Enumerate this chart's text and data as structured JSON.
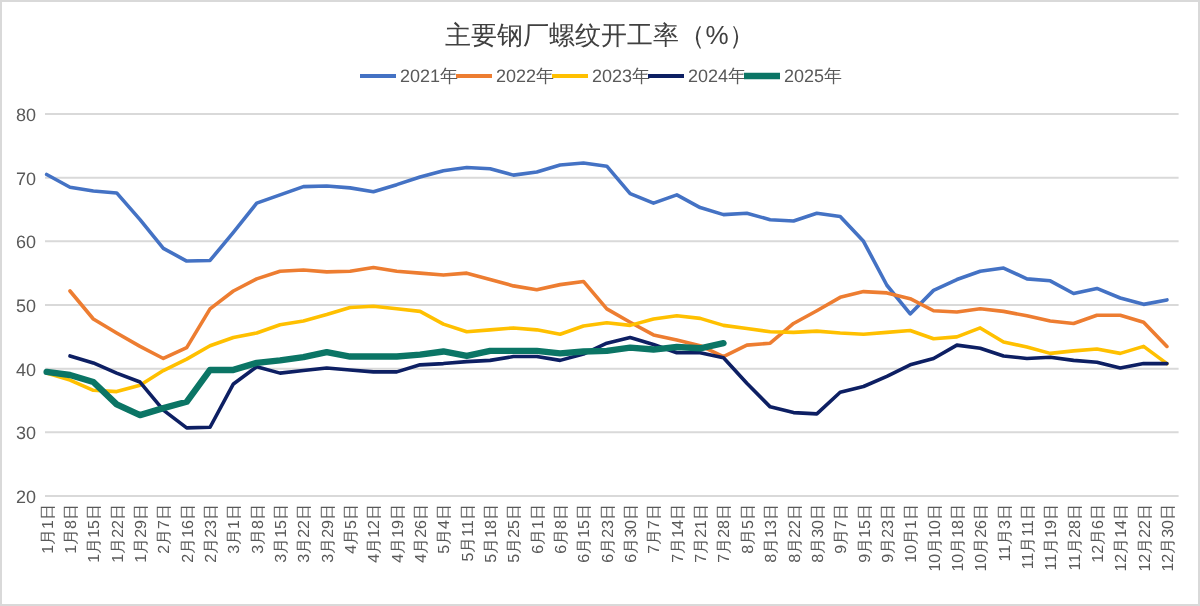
{
  "chart_data": {
    "type": "line",
    "title": "主要钢厂螺纹开工率（%）",
    "categories": [
      "1月1日",
      "1月8日",
      "1月15日",
      "1月22日",
      "1月29日",
      "2月7日",
      "2月16日",
      "2月23日",
      "3月1日",
      "3月8日",
      "3月15日",
      "3月22日",
      "3月29日",
      "4月5日",
      "4月12日",
      "4月19日",
      "4月26日",
      "5月4日",
      "5月11日",
      "5月18日",
      "5月25日",
      "6月1日",
      "6月8日",
      "6月15日",
      "6月23日",
      "6月30日",
      "7月7日",
      "7月14日",
      "7月21日",
      "7月28日",
      "8月5日",
      "8月13日",
      "8月22日",
      "8月30日",
      "9月7日",
      "9月15日",
      "9月23日",
      "10月1日",
      "10月10日",
      "10月18日",
      "10月26日",
      "11月3日",
      "11月11日",
      "11月19日",
      "11月28日",
      "12月6日",
      "12月14日",
      "12月22日",
      "12月30日"
    ],
    "series": [
      {
        "name": "2021年",
        "color": "#4472c4",
        "values": [
          70.5,
          68.5,
          67.9,
          67.6,
          63.4,
          58.9,
          56.9,
          57.0,
          61.4,
          66.0,
          67.3,
          68.6,
          68.7,
          68.4,
          67.8,
          68.9,
          70.1,
          71.1,
          71.6,
          71.4,
          70.4,
          70.9,
          72.0,
          72.3,
          71.8,
          67.5,
          66.0,
          67.3,
          65.3,
          64.2,
          64.4,
          63.4,
          63.2,
          64.4,
          63.9,
          60.0,
          53.1,
          48.6,
          52.3,
          54.0,
          55.3,
          55.8,
          54.1,
          53.8,
          51.8,
          52.6,
          51.1,
          50.1,
          50.8
        ]
      },
      {
        "name": "2022年",
        "color": "#ed7d31",
        "values": [
          null,
          52.2,
          47.8,
          45.6,
          43.5,
          41.6,
          43.3,
          49.4,
          52.2,
          54.1,
          55.3,
          55.5,
          55.2,
          55.3,
          55.9,
          55.3,
          55.0,
          54.7,
          55.0,
          54.0,
          53.0,
          52.4,
          53.2,
          53.7,
          49.4,
          47.3,
          45.3,
          44.5,
          43.6,
          41.9,
          43.7,
          44.0,
          47.1,
          49.1,
          51.2,
          52.1,
          51.9,
          51.0,
          49.1,
          48.9,
          49.4,
          49.0,
          48.3,
          47.5,
          47.1,
          48.4,
          48.4,
          47.3,
          43.5
        ]
      },
      {
        "name": "2023年",
        "color": "#ffc000",
        "values": [
          39.3,
          38.2,
          36.6,
          36.4,
          37.4,
          39.7,
          41.5,
          43.6,
          44.9,
          45.6,
          46.9,
          47.5,
          48.5,
          49.6,
          49.8,
          49.4,
          49.0,
          47.0,
          45.8,
          46.1,
          46.4,
          46.1,
          45.4,
          46.7,
          47.2,
          46.8,
          47.8,
          48.3,
          47.9,
          46.8,
          46.3,
          45.8,
          45.7,
          45.9,
          45.6,
          45.4,
          45.7,
          46.0,
          44.7,
          45.0,
          46.4,
          44.2,
          43.4,
          42.4,
          42.8,
          43.1,
          42.4,
          43.5,
          40.8
        ]
      },
      {
        "name": "2024年",
        "color": "#0d1f63",
        "values": [
          null,
          42.0,
          40.9,
          39.3,
          37.9,
          33.5,
          30.7,
          30.8,
          37.6,
          40.3,
          39.3,
          39.7,
          40.1,
          39.8,
          39.5,
          39.5,
          40.6,
          40.8,
          41.1,
          41.3,
          41.9,
          41.9,
          41.3,
          42.3,
          44.0,
          44.9,
          43.8,
          42.5,
          42.5,
          41.7,
          37.7,
          34.0,
          33.1,
          32.9,
          36.3,
          37.2,
          38.8,
          40.6,
          41.6,
          43.7,
          43.2,
          42.0,
          41.6,
          41.8,
          41.3,
          41.0,
          40.1,
          40.8,
          40.8
        ]
      },
      {
        "name": "2025年",
        "color": "#0b7565",
        "values": [
          39.5,
          39.0,
          37.9,
          34.4,
          32.7,
          33.8,
          34.8,
          39.8,
          39.8,
          40.9,
          41.3,
          41.8,
          42.6,
          41.9,
          41.9,
          41.9,
          42.2,
          42.7,
          42.0,
          42.8,
          42.8,
          42.8,
          42.4,
          42.7,
          42.8,
          43.3,
          43.0,
          43.4,
          43.2,
          44.0,
          null,
          null,
          null,
          null,
          null,
          null,
          null,
          null,
          null,
          null,
          null,
          null,
          null,
          null,
          null,
          null,
          null,
          null,
          null
        ]
      }
    ],
    "ylim": [
      20,
      80
    ],
    "yticks": [
      20,
      30,
      40,
      50,
      60,
      70,
      80
    ],
    "grid": "y",
    "legend": "top"
  }
}
